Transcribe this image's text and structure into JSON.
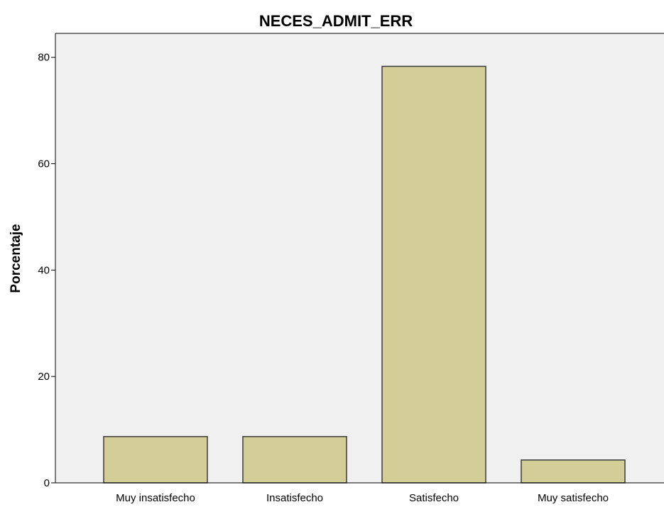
{
  "chart_data": {
    "type": "bar",
    "title": "NECES_ADMIT_ERR",
    "xlabel": "",
    "ylabel": "Porcentaje",
    "categories": [
      "Muy insatisfecho",
      "Insatisfecho",
      "Satisfecho",
      "Muy satisfecho"
    ],
    "values": [
      8.7,
      8.7,
      78.3,
      4.3
    ],
    "ylim": [
      0,
      84.5
    ],
    "yticks": [
      0,
      20,
      40,
      60,
      80
    ],
    "grid": false,
    "legend": "none",
    "colors": {
      "bar_fill": "#d3ce98",
      "bar_stroke": "#3a3a3a",
      "plot_background": "#f0f0f0",
      "axis": "#000000"
    }
  }
}
